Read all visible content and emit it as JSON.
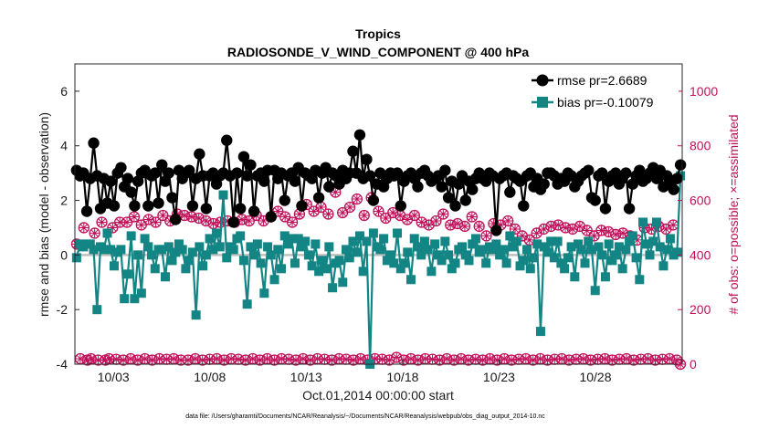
{
  "chart_data": {
    "type": "line",
    "title": "Tropics",
    "subtitle": "RADIOSONDE_V_WIND_COMPONENT @ 400 hPa",
    "xlabel": "Oct.01,2014 00:00:00 start",
    "ylabel": "rmse and bias (model - observation)",
    "y2label": "# of obs: o=possible; ×=assimilated",
    "footer": "data file: /Users/gharamti/Documents/NCAR/Reanalysis/~/Documents/NCAR/Reanalysis/webpub/obs_diag_output_2014-10.nc",
    "xlim": [
      1,
      32.5
    ],
    "ylim": [
      -4,
      7
    ],
    "y2lim": [
      0,
      1100
    ],
    "x_ticks": [
      3,
      8,
      13,
      18,
      23,
      28
    ],
    "x_tick_labels": [
      "10/03",
      "10/08",
      "10/13",
      "10/18",
      "10/23",
      "10/28"
    ],
    "y_ticks": [
      -4,
      -2,
      0,
      2,
      4,
      6
    ],
    "y2_ticks": [
      0,
      200,
      400,
      600,
      800,
      1000
    ],
    "legend_position": "top-right",
    "colors": {
      "rmse": "#000000",
      "bias": "#138585",
      "obs": "#c0105a",
      "zero_line": "#c0c0c0"
    },
    "series": [
      {
        "name": "rmse",
        "legend": "rmse pr=2.6689",
        "marker": "circle",
        "values": [
          3.1,
          2.9,
          3.0,
          1.6,
          2.8,
          4.1,
          2.9,
          1.7,
          2.8,
          1.9,
          2.7,
          1.8,
          3.0,
          3.2,
          2.5,
          2.8,
          2.3,
          1.8,
          2.7,
          3.0,
          3.1,
          1.8,
          2.9,
          3.0,
          1.9,
          3.3,
          2.7,
          3.0,
          2.1,
          1.3,
          3.1,
          2.8,
          3.0,
          3.1,
          1.8,
          2.8,
          3.7,
          2.9,
          1.7,
          2.9,
          3.0,
          2.6,
          2.9,
          3.0,
          4.2,
          2.9,
          1.2,
          3.0,
          1.7,
          3.6,
          2.9,
          3.3,
          1.6,
          2.9,
          3.0,
          2.7,
          3.1,
          1.4,
          3.1,
          2.8,
          3.0,
          2.0,
          2.9,
          3.0,
          2.7,
          3.2,
          1.8,
          3.0,
          2.9,
          2.8,
          3.1,
          2.1,
          3.0,
          3.2,
          2.5,
          3.0,
          2.9,
          2.6,
          3.1,
          2.8,
          3.0,
          3.8,
          3.0,
          4.4,
          2.8,
          3.5,
          2.9,
          2.0,
          2.6,
          3.0,
          2.5,
          2.8,
          3.0,
          2.9,
          3.0,
          1.8,
          2.7,
          2.9,
          3.0,
          2.8,
          2.5,
          3.0,
          3.1,
          2.9,
          2.7,
          2.8,
          2.9,
          2.5,
          3.1,
          2.1,
          2.7,
          1.8,
          2.6,
          2.9,
          2.0,
          2.7,
          2.4,
          2.8,
          3.0,
          2.8,
          2.7,
          3.0,
          2.9,
          0.9,
          2.8,
          2.9,
          3.0,
          2.3,
          2.9,
          2.8,
          2.7,
          1.8,
          2.9,
          3.0,
          2.5,
          2.8,
          2.4,
          2.6,
          3.0,
          3.0,
          2.9,
          2.6,
          2.8,
          2.7,
          3.0,
          2.9,
          2.5,
          2.7,
          2.9,
          3.0,
          3.1,
          2.1,
          2.0,
          2.9,
          3.0,
          1.7,
          2.7,
          2.9,
          3.0,
          2.6,
          2.8,
          3.0,
          1.7,
          2.6,
          2.9,
          3.1,
          2.7,
          2.8,
          3.0,
          3.2,
          2.8,
          3.1,
          2.5,
          2.9,
          2.6,
          2.4,
          2.8,
          3.3
        ],
        "note": "values are sampled in order along the x axis from xlim[0] to xlim[1]"
      },
      {
        "name": "bias",
        "legend": "bias pr=-0.10079",
        "marker": "square",
        "values": [
          -0.1,
          0.4,
          0.3,
          0.4,
          0.4,
          0.2,
          -2.0,
          0.3,
          0.2,
          0.8,
          0.2,
          -0.4,
          0.1,
          0.2,
          -1.6,
          -0.7,
          0.7,
          -1.6,
          0.0,
          -1.4,
          0.6,
          0.3,
          0.0,
          -0.5,
          0.2,
          0.2,
          -0.8,
          0.3,
          -0.2,
          0.1,
          0.4,
          0.2,
          -0.5,
          -0.2,
          0.1,
          -2.2,
          0.3,
          -0.4,
          0.0,
          0.6,
          0.2,
          0.8,
          0.3,
          2.2,
          -0.1,
          0.3,
          0.2,
          0.6,
          0.7,
          -0.2,
          -1.8,
          0.3,
          0.0,
          0.4,
          -0.3,
          -1.4,
          0.3,
          0.0,
          -0.9,
          0.2,
          -0.5,
          0.7,
          0.4,
          0.6,
          -0.3,
          0.6,
          0.3,
          0.5,
          0.0,
          -0.4,
          0.4,
          -0.6,
          -0.2,
          -0.5,
          0.3,
          -1.2,
          -0.3,
          -0.2,
          -1.0,
          0.2,
          -0.1,
          0.5,
          0.1,
          0.7,
          -0.6,
          0.5,
          -4.0,
          0.8,
          0.3,
          0.2,
          0.6,
          -0.2,
          0.0,
          -0.3,
          0.8,
          -0.5,
          -0.3,
          0.1,
          -0.9,
          0.6,
          0.3,
          0.0,
          0.5,
          0.2,
          -0.6,
          0.4,
          0.0,
          -0.2,
          0.5,
          0.0,
          -0.5,
          -0.3,
          0.2,
          0.3,
          0.0,
          -0.2,
          0.4,
          0.6,
          0.1,
          0.2,
          -0.3,
          0.3,
          0.2,
          0.4,
          0.0,
          0.2,
          -0.3,
          0.7,
          0.3,
          0.5,
          -0.4,
          -0.2,
          0.2,
          -0.5,
          -0.1,
          0.4,
          -2.8,
          0.3,
          0.1,
          0.5,
          -0.1,
          0.5,
          -0.3,
          -0.5,
          -0.1,
          0.3,
          -0.8,
          0.4,
          0.2,
          -0.3,
          0.5,
          0.2,
          -1.3,
          0.3,
          0.0,
          -0.8,
          0.4,
          -0.2,
          0.0,
          0.3,
          -0.5,
          0.2,
          0.5,
          0.7,
          -0.1,
          -0.9,
          1.2,
          0.4,
          0.0,
          0.5,
          1.2,
          0.3,
          -0.4,
          0.2,
          0.6,
          0.0,
          0.1,
          2.9
        ]
      },
      {
        "name": "obs_possible",
        "legend": "o=possible",
        "values": [
          440,
          20,
          500,
          15,
          20,
          480,
          15,
          520,
          15,
          20,
          500,
          18,
          520,
          15,
          520,
          20,
          540,
          15,
          510,
          20,
          530,
          15,
          520,
          20,
          545,
          18,
          525,
          20,
          550,
          15,
          545,
          15,
          540,
          20,
          535,
          15,
          525,
          18,
          515,
          20,
          520,
          15,
          525,
          20,
          520,
          18,
          530,
          15,
          525,
          20,
          545,
          15,
          525,
          20,
          540,
          15,
          560,
          20,
          540,
          18,
          520,
          15,
          550,
          20,
          585,
          15,
          560,
          20,
          575,
          18,
          550,
          15,
          630,
          20,
          555,
          18,
          575,
          15,
          605,
          20,
          545,
          15,
          610,
          20,
          560,
          18,
          535,
          15,
          555,
          25,
          545,
          15,
          530,
          20,
          545,
          15,
          520,
          20,
          510,
          18,
          525,
          15,
          550,
          20,
          510,
          15,
          515,
          20,
          505,
          15,
          540,
          18,
          505,
          15,
          470,
          20,
          515,
          15,
          510,
          20,
          525,
          15,
          495,
          18,
          470,
          20,
          455,
          15,
          480,
          20,
          495,
          15,
          505,
          18,
          510,
          20,
          500,
          15,
          495,
          18,
          505,
          20,
          490,
          15,
          470,
          18,
          490,
          20,
          485,
          15,
          475,
          18,
          480,
          20,
          470,
          15,
          455,
          18,
          500,
          20,
          495,
          15,
          505,
          18,
          495,
          20,
          510,
          15,
          0
        ]
      },
      {
        "name": "obs_assimilated",
        "legend": "×=assimilated",
        "values": [
          440,
          20,
          500,
          15,
          20,
          480,
          15,
          520,
          15,
          20,
          500,
          18,
          520,
          15,
          520,
          20,
          540,
          15,
          510,
          20,
          530,
          15,
          520,
          20,
          545,
          18,
          525,
          20,
          550,
          15,
          545,
          15,
          540,
          20,
          535,
          15,
          525,
          18,
          515,
          20,
          520,
          15,
          525,
          20,
          520,
          18,
          530,
          15,
          525,
          20,
          545,
          15,
          525,
          20,
          540,
          15,
          560,
          20,
          540,
          18,
          520,
          15,
          550,
          20,
          585,
          15,
          560,
          20,
          575,
          18,
          550,
          15,
          630,
          20,
          555,
          18,
          575,
          15,
          605,
          20,
          545,
          15,
          610,
          20,
          560,
          18,
          535,
          15,
          555,
          25,
          545,
          15,
          530,
          20,
          545,
          15,
          520,
          20,
          510,
          18,
          525,
          15,
          550,
          20,
          510,
          15,
          515,
          20,
          505,
          15,
          540,
          18,
          505,
          15,
          470,
          20,
          515,
          15,
          510,
          20,
          525,
          15,
          495,
          18,
          470,
          20,
          455,
          15,
          480,
          20,
          495,
          15,
          505,
          18,
          510,
          20,
          500,
          15,
          495,
          18,
          505,
          20,
          490,
          15,
          470,
          18,
          490,
          20,
          485,
          15,
          475,
          18,
          480,
          20,
          470,
          15,
          455,
          18,
          500,
          20,
          495,
          15,
          505,
          18,
          495,
          20,
          510,
          15,
          0
        ]
      }
    ]
  }
}
